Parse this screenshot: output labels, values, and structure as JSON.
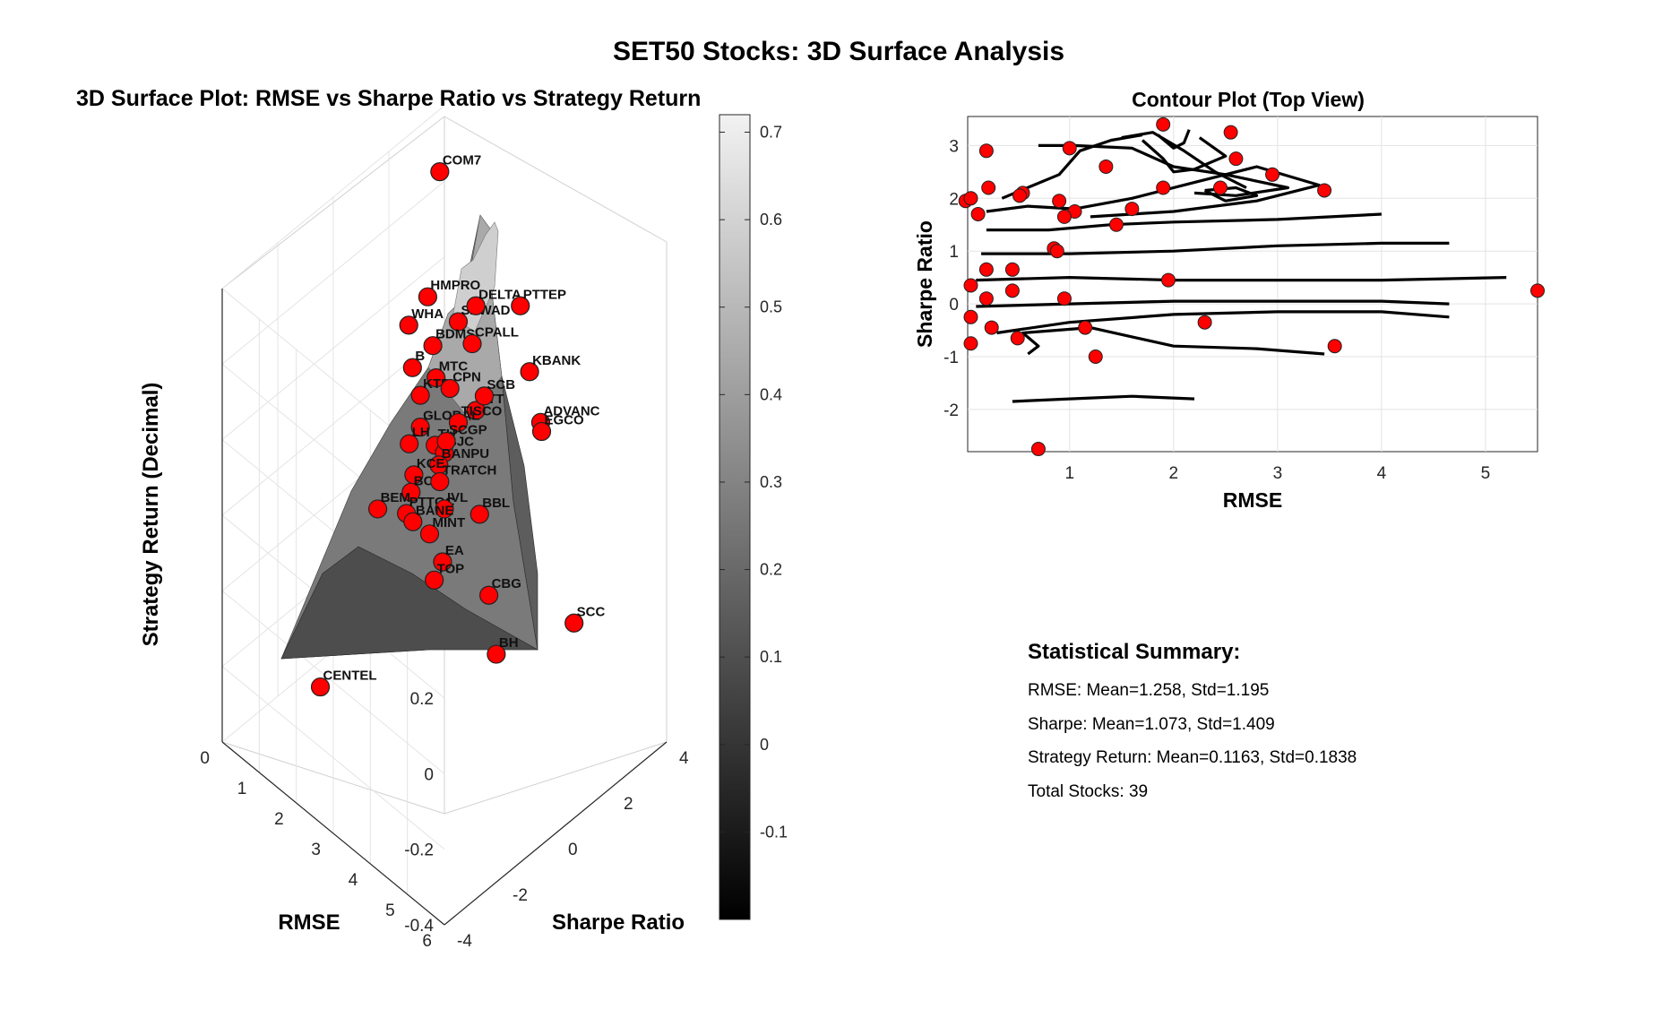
{
  "figure_title": "SET50 Stocks: 3D Surface Analysis",
  "chart_data": [
    {
      "type": "surface3d",
      "title": "3D Surface Plot: RMSE vs Sharpe Ratio vs Strategy Return",
      "xlabel": "RMSE",
      "ylabel": "Sharpe Ratio",
      "zlabel": "Strategy Return (Decimal)",
      "xlim": [
        0,
        6
      ],
      "ylim": [
        -4,
        4
      ],
      "zlim": [
        -0.4,
        0.8
      ],
      "x_ticks": [
        "0",
        "1",
        "2",
        "3",
        "4",
        "5",
        "6"
      ],
      "y_ticks": [
        "-4",
        "-2",
        "0",
        "2",
        "4"
      ],
      "z_ticks": [
        "-0.4",
        "-0.2",
        "0",
        "0.2",
        "0.4",
        "0.6",
        "0.8"
      ],
      "colormap": "gray",
      "colorbar": {
        "range": [
          -0.2,
          0.72
        ],
        "ticks": [
          "-0.1",
          "0",
          "0.1",
          "0.2",
          "0.3",
          "0.4",
          "0.5",
          "0.6",
          "0.7"
        ]
      },
      "marker_color": "#ff0000",
      "points": [
        {
          "label": "COM7",
          "rmse": 0.4,
          "sharpe": 3.3,
          "ret": 0.7
        },
        {
          "label": "HMPRO",
          "rmse": 1.05,
          "sharpe": 2.0,
          "ret": 0.5
        },
        {
          "label": "SAWAD",
          "rmse": 1.5,
          "sharpe": 2.5,
          "ret": 0.44
        },
        {
          "label": "DELTA",
          "rmse": 1.6,
          "sharpe": 3.0,
          "ret": 0.46
        },
        {
          "label": "WHA",
          "rmse": 0.95,
          "sharpe": 1.45,
          "ret": 0.45
        },
        {
          "label": "BDMS",
          "rmse": 1.3,
          "sharpe": 1.85,
          "ret": 0.4
        },
        {
          "label": "CPALL",
          "rmse": 1.8,
          "sharpe": 2.6,
          "ret": 0.4
        },
        {
          "label": "PTTEP",
          "rmse": 2.2,
          "sharpe": 3.8,
          "ret": 0.46
        },
        {
          "label": "B",
          "rmse": 1.2,
          "sharpe": 1.25,
          "ret": 0.37
        },
        {
          "label": "MTC",
          "rmse": 1.5,
          "sharpe": 1.7,
          "ret": 0.34
        },
        {
          "label": "KTB",
          "rmse": 1.45,
          "sharpe": 1.2,
          "ret": 0.32
        },
        {
          "label": "CPN",
          "rmse": 1.8,
          "sharpe": 1.8,
          "ret": 0.33
        },
        {
          "label": "KBANK",
          "rmse": 2.6,
          "sharpe": 3.6,
          "ret": 0.33
        },
        {
          "label": "PTT",
          "rmse": 2.2,
          "sharpe": 2.2,
          "ret": 0.28
        },
        {
          "label": "SCB",
          "rmse": 2.2,
          "sharpe": 2.5,
          "ret": 0.3
        },
        {
          "label": "ADVANC",
          "rmse": 2.9,
          "sharpe": 3.6,
          "ret": 0.22
        },
        {
          "label": "EGCO",
          "rmse": 3.0,
          "sharpe": 3.5,
          "ret": 0.21
        },
        {
          "label": "GLOBAL",
          "rmse": 1.6,
          "sharpe": 1.0,
          "ret": 0.26
        },
        {
          "label": "TISCO",
          "rmse": 2.1,
          "sharpe": 1.7,
          "ret": 0.27
        },
        {
          "label": "TU",
          "rmse": 1.85,
          "sharpe": 1.2,
          "ret": 0.22
        },
        {
          "label": "LH",
          "rmse": 1.6,
          "sharpe": 0.6,
          "ret": 0.24
        },
        {
          "label": "BJC",
          "rmse": 2.1,
          "sharpe": 1.2,
          "ret": 0.22
        },
        {
          "label": "SCGP",
          "rmse": 2.0,
          "sharpe": 1.4,
          "ret": 0.23
        },
        {
          "label": "BANPU",
          "rmse": 2.1,
          "sharpe": 1.0,
          "ret": 0.2
        },
        {
          "label": "KCE",
          "rmse": 1.8,
          "sharpe": 0.5,
          "ret": 0.18
        },
        {
          "label": "BCP",
          "rmse": 1.8,
          "sharpe": 0.4,
          "ret": 0.14
        },
        {
          "label": "TRATCH",
          "rmse": 2.2,
          "sharpe": 0.9,
          "ret": 0.17
        },
        {
          "label": "BEM",
          "rmse": 1.5,
          "sharpe": -0.4,
          "ret": 0.12
        },
        {
          "label": "PTTGC",
          "rmse": 1.9,
          "sharpe": 0.1,
          "ret": 0.11
        },
        {
          "label": "IVL",
          "rmse": 2.4,
          "sharpe": 0.8,
          "ret": 0.12
        },
        {
          "label": "BBL",
          "rmse": 2.9,
          "sharpe": 1.4,
          "ret": 0.11
        },
        {
          "label": "BANE",
          "rmse": 2.0,
          "sharpe": 0.2,
          "ret": 0.09
        },
        {
          "label": "MINT",
          "rmse": 2.3,
          "sharpe": 0.4,
          "ret": 0.07
        },
        {
          "label": "EA",
          "rmse": 2.5,
          "sharpe": 0.6,
          "ret": 0.0
        },
        {
          "label": "TOP",
          "rmse": 2.5,
          "sharpe": 0.3,
          "ret": -0.03
        },
        {
          "label": "CBG",
          "rmse": 3.3,
          "sharpe": 1.2,
          "ret": -0.06
        },
        {
          "label": "CENTEL",
          "rmse": 1.6,
          "sharpe": -2.6,
          "ret": -0.21
        },
        {
          "label": "BH",
          "rmse": 3.5,
          "sharpe": 1.2,
          "ret": -0.2
        },
        {
          "label": "SCC",
          "rmse": 4.1,
          "sharpe": 3.2,
          "ret": -0.19
        }
      ]
    },
    {
      "type": "contour",
      "title": "Contour Plot (Top View)",
      "xlabel": "RMSE",
      "ylabel": "Sharpe Ratio",
      "xlim": [
        0.02,
        5.5
      ],
      "ylim": [
        -2.8,
        3.55
      ],
      "x_ticks": [
        1,
        2,
        3,
        4,
        5
      ],
      "y_ticks": [
        -2,
        -1,
        0,
        1,
        2,
        3
      ],
      "grid": true,
      "marker_color": "#ff0000",
      "points": [
        [
          1.9,
          3.4
        ],
        [
          2.55,
          3.25
        ],
        [
          0.2,
          2.9
        ],
        [
          1.0,
          2.95
        ],
        [
          2.6,
          2.75
        ],
        [
          1.35,
          2.6
        ],
        [
          2.95,
          2.45
        ],
        [
          0.0,
          1.95
        ],
        [
          0.05,
          2.0
        ],
        [
          0.22,
          2.2
        ],
        [
          0.55,
          2.1
        ],
        [
          0.52,
          2.05
        ],
        [
          0.9,
          1.95
        ],
        [
          1.05,
          1.75
        ],
        [
          0.95,
          1.65
        ],
        [
          1.6,
          1.8
        ],
        [
          1.9,
          2.2
        ],
        [
          2.45,
          2.2
        ],
        [
          3.45,
          2.15
        ],
        [
          0.12,
          1.7
        ],
        [
          1.45,
          1.5
        ],
        [
          0.85,
          1.05
        ],
        [
          0.88,
          1.0
        ],
        [
          0.2,
          0.65
        ],
        [
          0.45,
          0.65
        ],
        [
          0.05,
          0.35
        ],
        [
          0.2,
          0.1
        ],
        [
          0.45,
          0.25
        ],
        [
          0.95,
          0.1
        ],
        [
          1.95,
          0.45
        ],
        [
          5.5,
          0.25
        ],
        [
          0.05,
          -0.25
        ],
        [
          0.25,
          -0.45
        ],
        [
          0.05,
          -0.75
        ],
        [
          0.5,
          -0.65
        ],
        [
          1.15,
          -0.45
        ],
        [
          2.3,
          -0.35
        ],
        [
          1.25,
          -1.0
        ],
        [
          3.55,
          -0.8
        ],
        [
          0.7,
          -2.75
        ]
      ]
    }
  ],
  "stats": {
    "heading": "Statistical Summary:",
    "rmse": "RMSE: Mean=1.258, Std=1.195",
    "sharpe": "Sharpe: Mean=1.073, Std=1.409",
    "strategy": "Strategy Return: Mean=0.1163, Std=0.1838",
    "total": "Total Stocks: 39"
  }
}
